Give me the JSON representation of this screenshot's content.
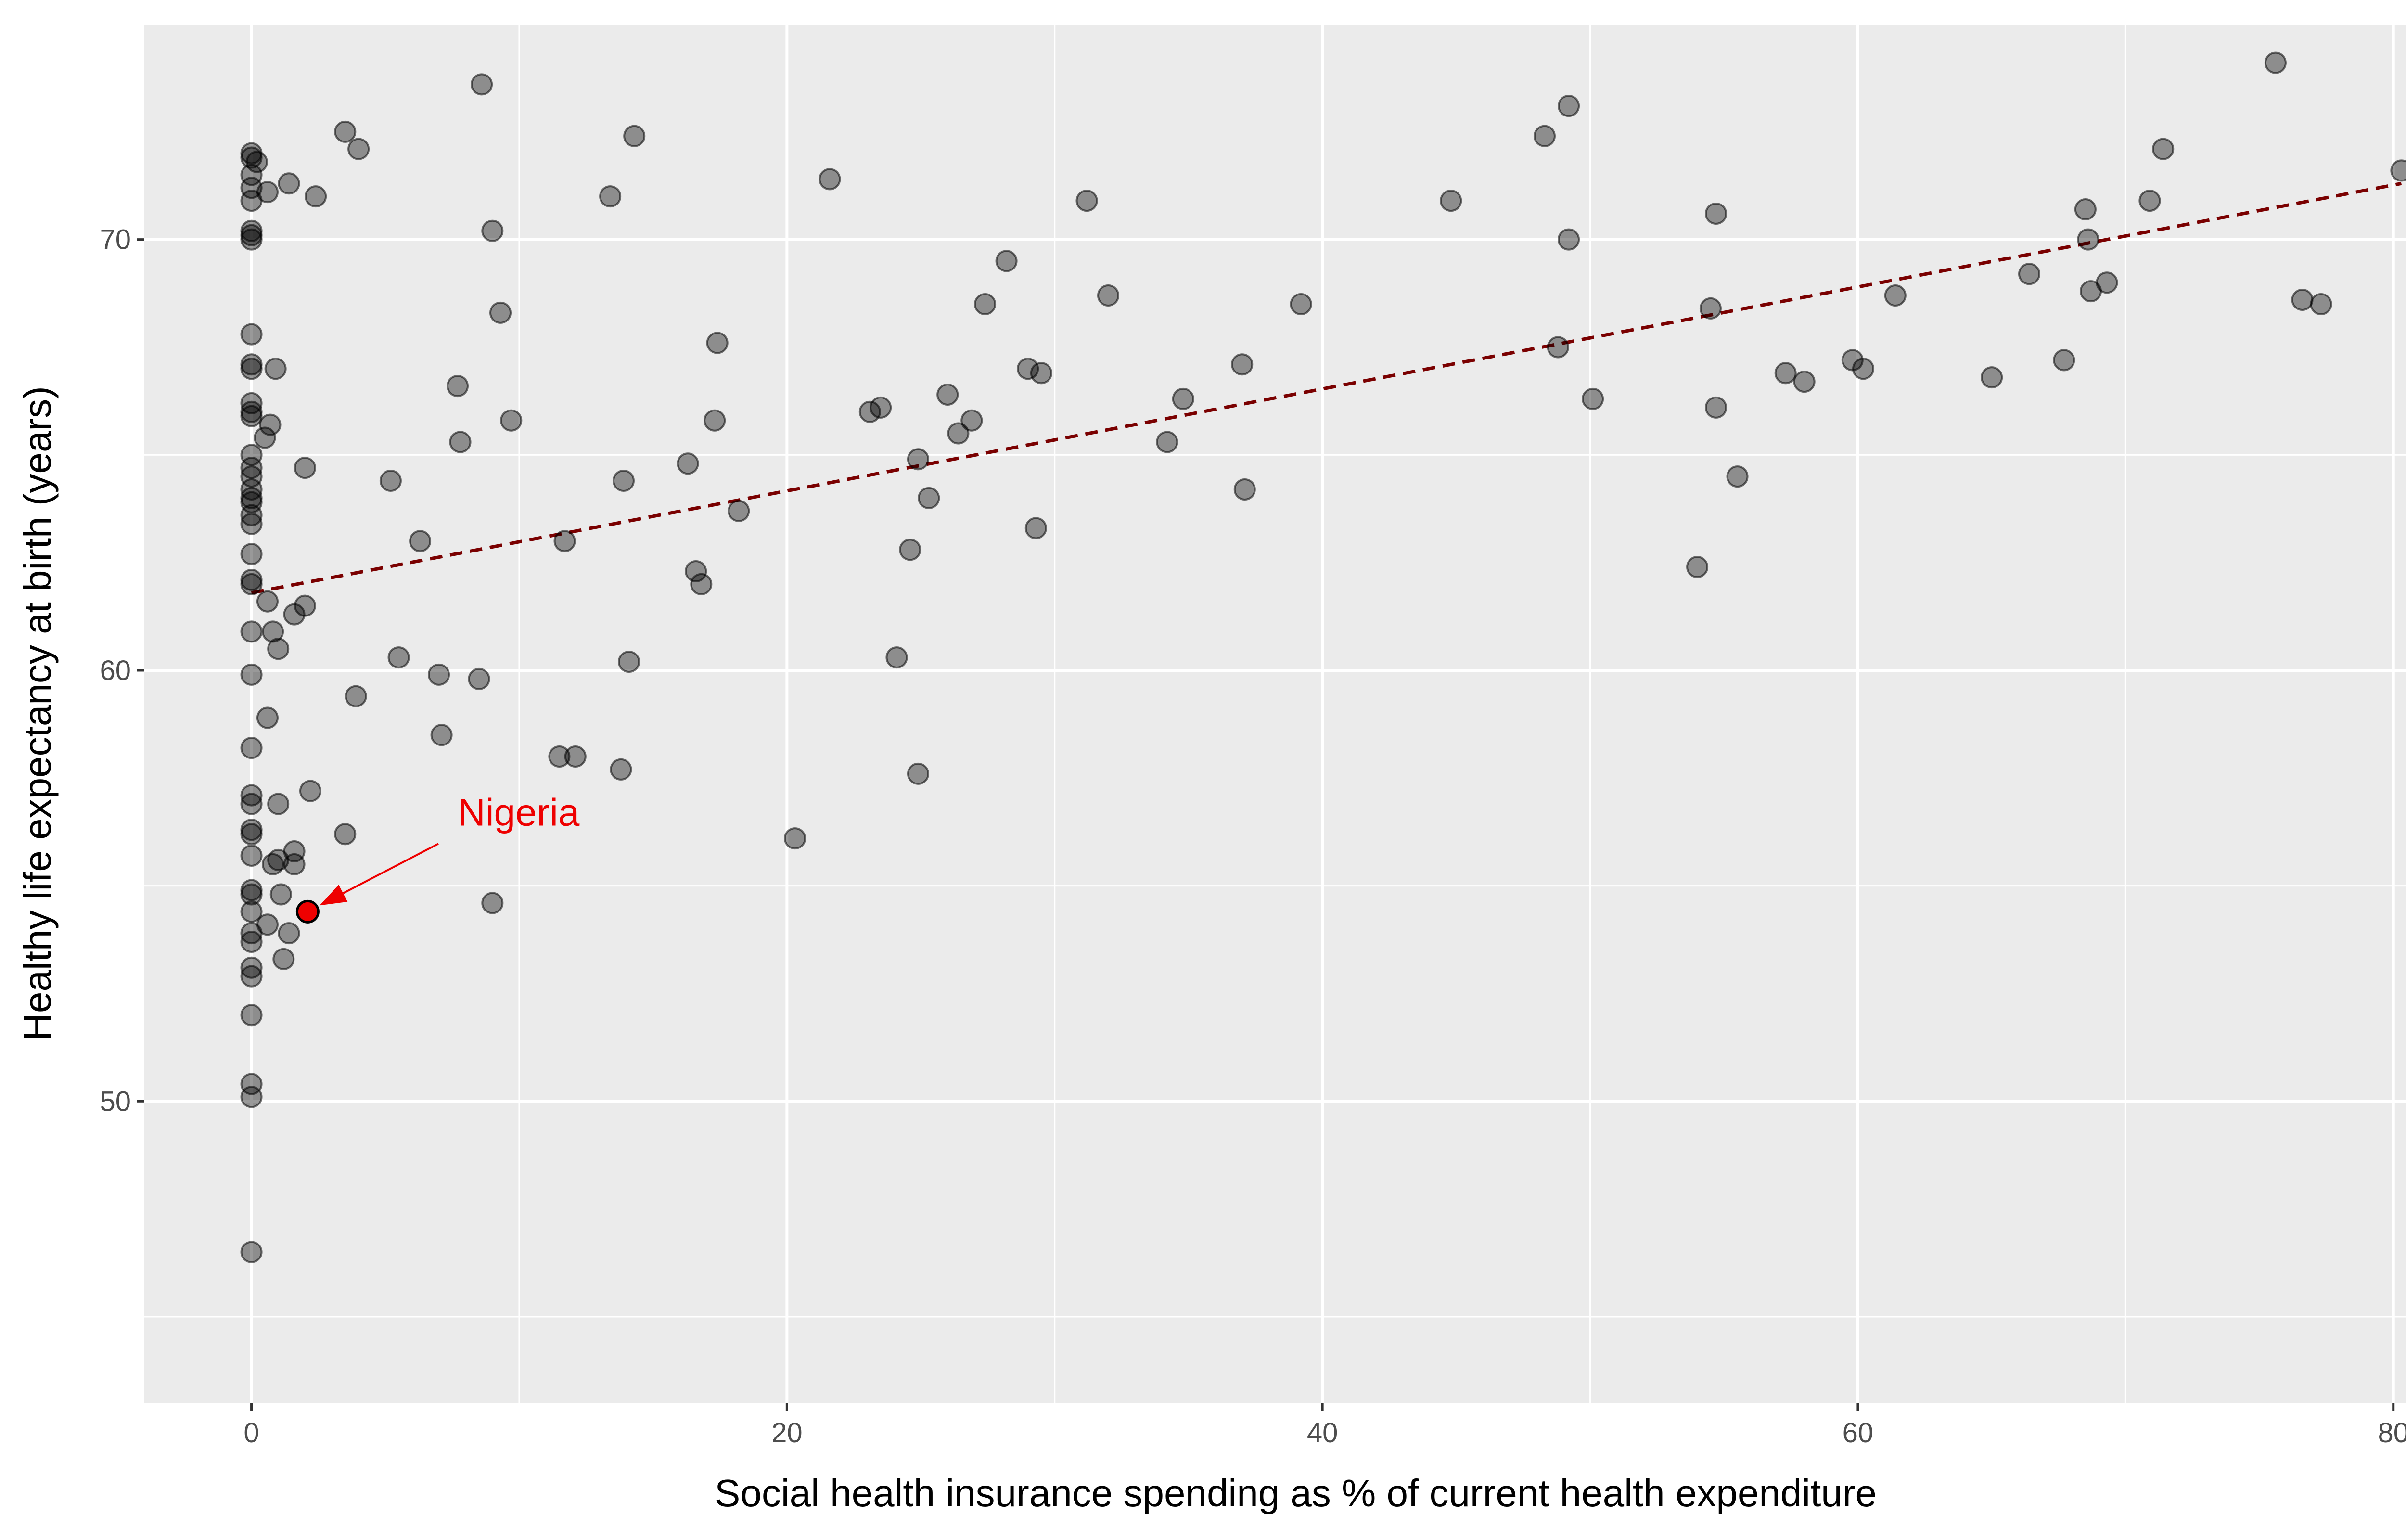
{
  "chart_data": {
    "type": "scatter",
    "title": "",
    "xlabel": "Social health insurance spending as % of current health expenditure",
    "ylabel": "Healthy life expectancy at birth (years)",
    "xlim": [
      -4,
      82
    ],
    "ylim": [
      43,
      75
    ],
    "x_ticks": [
      0,
      20,
      40,
      60,
      80
    ],
    "y_ticks": [
      50,
      60,
      70
    ],
    "x_tick_labels": [
      "0",
      "20",
      "40",
      "60",
      "80"
    ],
    "y_tick_labels": [
      "50",
      "60",
      "70"
    ],
    "grid": true,
    "legend": "none",
    "colors": {
      "panel": "#ebebeb",
      "grid": "#ffffff",
      "point_fill": "#000000",
      "point_opacity": 0.4,
      "highlight": "#ee0000",
      "trend": "#7a0000"
    },
    "points": [
      [
        0,
        72.0
      ],
      [
        0,
        71.9
      ],
      [
        0.2,
        71.8
      ],
      [
        0,
        71.5
      ],
      [
        0,
        71.2
      ],
      [
        0,
        70.9
      ],
      [
        0,
        70.2
      ],
      [
        0,
        70.1
      ],
      [
        0,
        70.0
      ],
      [
        0,
        67.8
      ],
      [
        0,
        67.1
      ],
      [
        0,
        67.0
      ],
      [
        0,
        66.2
      ],
      [
        0,
        66.0
      ],
      [
        0,
        65.9
      ],
      [
        0,
        65.0
      ],
      [
        0,
        64.7
      ],
      [
        0,
        64.5
      ],
      [
        0,
        64.2
      ],
      [
        0,
        64.0
      ],
      [
        0,
        63.9
      ],
      [
        0,
        63.6
      ],
      [
        0,
        63.4
      ],
      [
        0,
        62.7
      ],
      [
        0,
        62.1
      ],
      [
        0,
        62.0
      ],
      [
        0,
        60.9
      ],
      [
        0,
        59.9
      ],
      [
        0,
        58.2
      ],
      [
        0,
        57.1
      ],
      [
        0,
        56.9
      ],
      [
        0,
        56.3
      ],
      [
        0,
        56.2
      ],
      [
        0,
        55.7
      ],
      [
        0,
        54.9
      ],
      [
        0,
        54.8
      ],
      [
        0,
        54.4
      ],
      [
        0,
        53.9
      ],
      [
        0,
        53.7
      ],
      [
        0,
        53.1
      ],
      [
        0,
        52.9
      ],
      [
        0,
        52.0
      ],
      [
        0,
        50.4
      ],
      [
        0,
        50.1
      ],
      [
        0,
        46.5
      ],
      [
        0.6,
        71.1
      ],
      [
        1.4,
        71.3
      ],
      [
        2.4,
        71.0
      ],
      [
        3.5,
        72.5
      ],
      [
        4.0,
        72.1
      ],
      [
        8.6,
        73.6
      ],
      [
        14.3,
        72.4
      ],
      [
        13.4,
        71.0
      ],
      [
        9.0,
        70.2
      ],
      [
        9.3,
        68.3
      ],
      [
        0.9,
        67.0
      ],
      [
        0.7,
        65.7
      ],
      [
        0.5,
        65.4
      ],
      [
        7.7,
        66.6
      ],
      [
        9.7,
        65.8
      ],
      [
        7.8,
        65.3
      ],
      [
        2.0,
        64.7
      ],
      [
        5.2,
        64.4
      ],
      [
        6.3,
        63.0
      ],
      [
        0.6,
        61.6
      ],
      [
        2.0,
        61.5
      ],
      [
        1.6,
        61.3
      ],
      [
        0.8,
        60.9
      ],
      [
        1.0,
        60.5
      ],
      [
        5.5,
        60.3
      ],
      [
        7.0,
        59.9
      ],
      [
        8.5,
        59.8
      ],
      [
        3.9,
        59.4
      ],
      [
        0.6,
        58.9
      ],
      [
        7.1,
        58.5
      ],
      [
        2.2,
        57.2
      ],
      [
        1.0,
        56.9
      ],
      [
        3.5,
        56.2
      ],
      [
        1.6,
        55.8
      ],
      [
        1.0,
        55.6
      ],
      [
        1.6,
        55.5
      ],
      [
        0.8,
        55.5
      ],
      [
        1.1,
        54.8
      ],
      [
        0.6,
        54.1
      ],
      [
        1.4,
        53.9
      ],
      [
        1.2,
        53.3
      ],
      [
        9.0,
        54.6
      ],
      [
        11.7,
        63.0
      ],
      [
        11.5,
        58.0
      ],
      [
        12.1,
        58.0
      ],
      [
        13.8,
        57.7
      ],
      [
        14.1,
        60.2
      ],
      [
        13.9,
        64.4
      ],
      [
        16.3,
        64.8
      ],
      [
        16.6,
        62.3
      ],
      [
        16.8,
        62.0
      ],
      [
        17.3,
        65.8
      ],
      [
        17.4,
        67.6
      ],
      [
        18.2,
        63.7
      ],
      [
        20.3,
        56.1
      ],
      [
        21.6,
        71.4
      ],
      [
        23.1,
        66.0
      ],
      [
        23.5,
        66.1
      ],
      [
        24.1,
        60.3
      ],
      [
        24.6,
        62.8
      ],
      [
        24.9,
        64.9
      ],
      [
        24.9,
        57.6
      ],
      [
        25.3,
        64.0
      ],
      [
        26.0,
        66.4
      ],
      [
        26.4,
        65.5
      ],
      [
        26.9,
        65.8
      ],
      [
        27.4,
        68.5
      ],
      [
        28.2,
        69.5
      ],
      [
        29.0,
        67.0
      ],
      [
        29.5,
        66.9
      ],
      [
        29.3,
        63.3
      ],
      [
        31.2,
        70.9
      ],
      [
        32.0,
        68.7
      ],
      [
        34.2,
        65.3
      ],
      [
        34.8,
        66.3
      ],
      [
        37.0,
        67.1
      ],
      [
        37.1,
        64.2
      ],
      [
        39.2,
        68.5
      ],
      [
        44.8,
        70.9
      ],
      [
        48.3,
        72.4
      ],
      [
        49.2,
        73.1
      ],
      [
        48.8,
        67.5
      ],
      [
        49.2,
        70.0
      ],
      [
        50.1,
        66.3
      ],
      [
        54.0,
        62.4
      ],
      [
        54.5,
        68.4
      ],
      [
        54.7,
        70.6
      ],
      [
        54.7,
        66.1
      ],
      [
        55.5,
        64.5
      ],
      [
        57.3,
        66.9
      ],
      [
        58.0,
        66.7
      ],
      [
        59.8,
        67.2
      ],
      [
        60.2,
        67.0
      ],
      [
        61.4,
        68.7
      ],
      [
        65.0,
        66.8
      ],
      [
        66.4,
        69.2
      ],
      [
        67.7,
        67.2
      ],
      [
        68.5,
        70.7
      ],
      [
        68.6,
        70.0
      ],
      [
        68.7,
        68.8
      ],
      [
        69.3,
        69.0
      ],
      [
        70.9,
        70.9
      ],
      [
        71.4,
        72.1
      ],
      [
        75.6,
        74.1
      ],
      [
        76.6,
        68.6
      ],
      [
        77.3,
        68.5
      ],
      [
        80.3,
        71.6
      ]
    ],
    "trend_line": {
      "style": "dashed",
      "x": [
        0,
        80.3
      ],
      "y": [
        61.8,
        71.3
      ]
    },
    "highlight": {
      "label": "Nigeria",
      "x": 2.1,
      "y": 54.4,
      "label_x": 7.7,
      "label_y": 56.4
    }
  }
}
